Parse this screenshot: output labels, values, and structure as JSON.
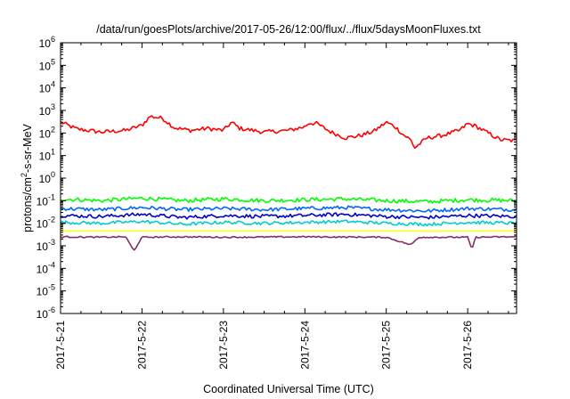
{
  "chart_data": {
    "type": "line",
    "title": "/data/run/goesPlots/archive/2017-05-26/12:00/flux/../flux/5daysMoonFluxes.txt",
    "xlabel": "Coordinated Universal Time (UTC)",
    "ylabel_parts": [
      "protons/cm",
      "2",
      "-s-sr-MeV"
    ],
    "x_ticks": [
      "2017-5-21",
      "2017-5-22",
      "2017-5-23",
      "2017-5-24",
      "2017-5-25",
      "2017-5-26"
    ],
    "x_range_days": [
      0,
      5.6
    ],
    "y_scale": "log",
    "y_tick_exponents": [
      -6,
      -5,
      -4,
      -3,
      -2,
      -1,
      0,
      1,
      2,
      3,
      4,
      5,
      6
    ],
    "y_tick_base": "10",
    "ylim": [
      1e-06,
      1000000.0
    ],
    "grid": false,
    "legend": "none",
    "series": [
      {
        "color": "#ff0000",
        "points": [
          [
            0,
            300
          ],
          [
            0.2,
            150
          ],
          [
            0.5,
            110
          ],
          [
            0.8,
            130
          ],
          [
            1.0,
            220
          ],
          [
            1.1,
            550
          ],
          [
            1.25,
            450
          ],
          [
            1.4,
            170
          ],
          [
            1.6,
            130
          ],
          [
            1.8,
            160
          ],
          [
            2.0,
            130
          ],
          [
            2.1,
            300
          ],
          [
            2.2,
            160
          ],
          [
            2.5,
            110
          ],
          [
            2.8,
            130
          ],
          [
            3.0,
            190
          ],
          [
            3.05,
            280
          ],
          [
            3.15,
            260
          ],
          [
            3.3,
            120
          ],
          [
            3.5,
            60
          ],
          [
            3.7,
            80
          ],
          [
            3.85,
            120
          ],
          [
            4.0,
            300
          ],
          [
            4.1,
            200
          ],
          [
            4.2,
            90
          ],
          [
            4.3,
            50
          ],
          [
            4.35,
            22
          ],
          [
            4.5,
            60
          ],
          [
            4.7,
            80
          ],
          [
            4.9,
            130
          ],
          [
            5.0,
            260
          ],
          [
            5.1,
            200
          ],
          [
            5.25,
            100
          ],
          [
            5.4,
            50
          ],
          [
            5.6,
            45
          ]
        ]
      },
      {
        "color": "#00ff00",
        "points": [
          [
            0,
            0.12
          ],
          [
            0.5,
            0.1
          ],
          [
            1.0,
            0.13
          ],
          [
            1.5,
            0.1
          ],
          [
            2.0,
            0.12
          ],
          [
            2.5,
            0.1
          ],
          [
            3.0,
            0.11
          ],
          [
            3.5,
            0.12
          ],
          [
            4.0,
            0.1
          ],
          [
            4.5,
            0.09
          ],
          [
            5.0,
            0.11
          ],
          [
            5.6,
            0.1
          ]
        ]
      },
      {
        "color": "#0066ff",
        "points": [
          [
            0,
            0.045
          ],
          [
            0.5,
            0.04
          ],
          [
            1.0,
            0.05
          ],
          [
            1.5,
            0.04
          ],
          [
            2.0,
            0.045
          ],
          [
            2.5,
            0.04
          ],
          [
            3.0,
            0.045
          ],
          [
            3.5,
            0.05
          ],
          [
            4.0,
            0.04
          ],
          [
            4.5,
            0.035
          ],
          [
            5.0,
            0.045
          ],
          [
            5.6,
            0.04
          ]
        ]
      },
      {
        "color": "#0000cc",
        "points": [
          [
            0,
            0.022
          ],
          [
            0.5,
            0.02
          ],
          [
            1.0,
            0.025
          ],
          [
            1.5,
            0.018
          ],
          [
            2.0,
            0.022
          ],
          [
            2.5,
            0.02
          ],
          [
            3.0,
            0.022
          ],
          [
            3.5,
            0.025
          ],
          [
            4.0,
            0.02
          ],
          [
            4.5,
            0.018
          ],
          [
            5.0,
            0.022
          ],
          [
            5.6,
            0.02
          ]
        ]
      },
      {
        "color": "#00cccc",
        "points": [
          [
            0,
            0.011
          ],
          [
            0.5,
            0.01
          ],
          [
            1.0,
            0.012
          ],
          [
            1.5,
            0.009
          ],
          [
            2.0,
            0.011
          ],
          [
            2.5,
            0.01
          ],
          [
            3.0,
            0.011
          ],
          [
            3.5,
            0.012
          ],
          [
            4.0,
            0.01
          ],
          [
            4.5,
            0.009
          ],
          [
            5.0,
            0.011
          ],
          [
            5.6,
            0.01
          ]
        ]
      },
      {
        "color": "#ffff00",
        "points": [
          [
            0,
            0.0045
          ],
          [
            1.0,
            0.0045
          ],
          [
            2.0,
            0.0045
          ],
          [
            3.0,
            0.0045
          ],
          [
            4.0,
            0.0045
          ],
          [
            5.0,
            0.0045
          ],
          [
            5.6,
            0.0045
          ]
        ]
      },
      {
        "color": "#7f2f6f",
        "points": [
          [
            0,
            0.0025
          ],
          [
            0.5,
            0.0024
          ],
          [
            0.8,
            0.0025
          ],
          [
            0.9,
            0.0006
          ],
          [
            1.0,
            0.0024
          ],
          [
            1.5,
            0.0025
          ],
          [
            2.0,
            0.0024
          ],
          [
            3.0,
            0.0025
          ],
          [
            4.0,
            0.0024
          ],
          [
            4.3,
            0.0011
          ],
          [
            4.4,
            0.0024
          ],
          [
            5.0,
            0.0024
          ],
          [
            5.05,
            0.0007
          ],
          [
            5.1,
            0.0024
          ],
          [
            5.6,
            0.0025
          ]
        ]
      }
    ]
  }
}
